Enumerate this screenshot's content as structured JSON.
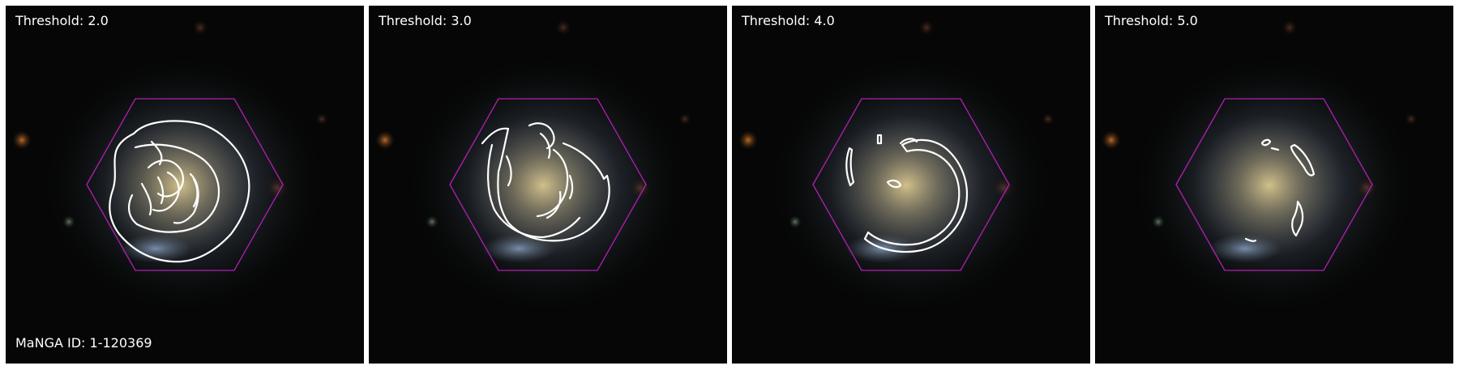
{
  "panels": [
    {
      "threshold_label": "Threshold: 2.0",
      "id_label": "MaNGA ID: 1-120369"
    },
    {
      "threshold_label": "Threshold: 3.0"
    },
    {
      "threshold_label": "Threshold: 4.0"
    },
    {
      "threshold_label": "Threshold: 5.0"
    }
  ],
  "colors": {
    "hexagon": "#b21fb2",
    "contour": "#ffffff",
    "background": "#050605",
    "galaxy_core": "#c9b886",
    "galaxy_halo": "#5d6b7a"
  }
}
